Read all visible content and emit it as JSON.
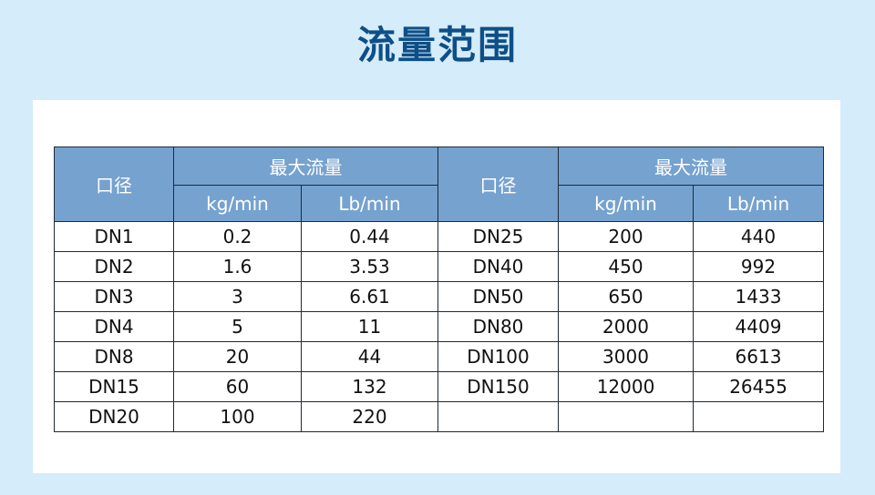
{
  "title": "流量范围",
  "colors": {
    "background": "#d5ecfa",
    "title": "#0e4f87",
    "header": "#76a2cf"
  },
  "header": {
    "diameter": "口径",
    "max_flow": "最大流量",
    "kg_min": "kg/min",
    "lb_min": "Lb/min"
  },
  "rows": [
    [
      [
        "DN1",
        "0.2",
        "0.44"
      ],
      [
        "DN25",
        "200",
        "440"
      ]
    ],
    [
      [
        "DN2",
        "1.6",
        "3.53"
      ],
      [
        "DN40",
        "450",
        "992"
      ]
    ],
    [
      [
        "DN3",
        "3",
        "6.61"
      ],
      [
        "DN50",
        "650",
        "1433"
      ]
    ],
    [
      [
        "DN4",
        "5",
        "11"
      ],
      [
        "DN80",
        "2000",
        "4409"
      ]
    ],
    [
      [
        "DN8",
        "20",
        "44"
      ],
      [
        "DN100",
        "3000",
        "6613"
      ]
    ],
    [
      [
        "DN15",
        "60",
        "132"
      ],
      [
        "DN150",
        "12000",
        "26455"
      ]
    ],
    [
      [
        "DN20",
        "100",
        "220"
      ],
      [
        "",
        "",
        ""
      ]
    ]
  ]
}
